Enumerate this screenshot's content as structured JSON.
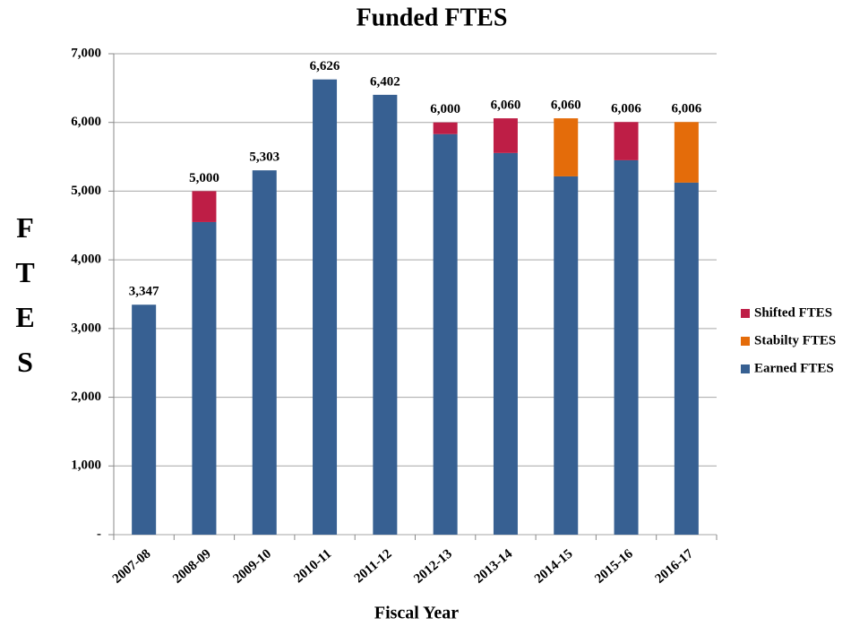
{
  "chart_data": {
    "type": "stacked_bar",
    "title": "Funded FTES",
    "xlabel": "Fiscal Year",
    "ylabel": "FTES",
    "categories": [
      "2007-08",
      "2008-09",
      "2009-10",
      "2010-11",
      "2011-12",
      "2012-13",
      "2013-14",
      "2014-15",
      "2015-16",
      "2016-17"
    ],
    "series": [
      {
        "name": "Shifted FTES",
        "color": "#be1e46",
        "values": [
          null,
          450,
          null,
          null,
          null,
          170,
          505,
          null,
          556,
          null
        ]
      },
      {
        "name": "Stabilty FTES",
        "color": "#e46c0a",
        "values": [
          null,
          null,
          null,
          null,
          null,
          null,
          null,
          845,
          null,
          882
        ]
      },
      {
        "name": "Earned FTES",
        "color": "#376092",
        "values": [
          3347,
          4550,
          5303,
          6626,
          6402,
          5830,
          5555,
          5215,
          5450,
          5124
        ]
      }
    ],
    "totals": [
      3347,
      5000,
      5303,
      6626,
      6402,
      6000,
      6060,
      6060,
      6006,
      6006
    ],
    "total_labels": [
      "3,347",
      "5,000",
      "5,303",
      "6,626",
      "6,402",
      "6,000",
      "6,060",
      "6,060",
      "6,006",
      "6,006"
    ],
    "ylim": [
      0,
      7000
    ],
    "yticks": [
      {
        "value": 0,
        "label": "-"
      },
      {
        "value": 1000,
        "label": "1,000"
      },
      {
        "value": 2000,
        "label": "2,000"
      },
      {
        "value": 3000,
        "label": "3,000"
      },
      {
        "value": 4000,
        "label": "4,000"
      },
      {
        "value": 5000,
        "label": "5,000"
      },
      {
        "value": 6000,
        "label": "6,000"
      },
      {
        "value": 7000,
        "label": "7,000"
      }
    ],
    "grid": true,
    "legend": "right"
  }
}
